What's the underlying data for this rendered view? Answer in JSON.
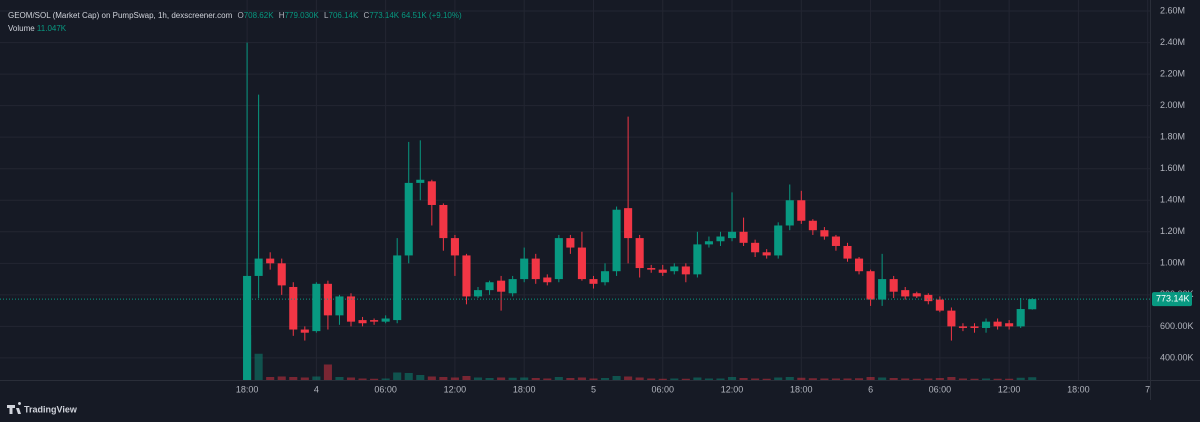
{
  "legend": {
    "symbol": "GEOM/SOL (Market Cap) on PumpSwap, 1h, dexscreener.com",
    "open_label": "O",
    "open": "708.62K",
    "high_label": "H",
    "high": "779.030K",
    "low_label": "L",
    "low": "706.14K",
    "close_label": "C",
    "close": "773.14K",
    "change": "64.51K (+9.10%)",
    "volume_label": "Volume",
    "volume": "11.047K"
  },
  "chart_data": {
    "type": "candlestick",
    "x": [
      18,
      19,
      20,
      21,
      22,
      23,
      24,
      25,
      26,
      27,
      28,
      29,
      30,
      31,
      32,
      33,
      34,
      35,
      36,
      37,
      38,
      39,
      40,
      41,
      42,
      43,
      44,
      45,
      46,
      47,
      48,
      49,
      50,
      51,
      52,
      53,
      54,
      55,
      56,
      57,
      58,
      59,
      60,
      61,
      62,
      63,
      64,
      65,
      66,
      67,
      68,
      69,
      70,
      71,
      72,
      73,
      74,
      75,
      76,
      77,
      78,
      79,
      80,
      81,
      82,
      83,
      84,
      85,
      86
    ],
    "open": [
      260000,
      920000,
      1030000,
      1000000,
      850000,
      580000,
      570000,
      870000,
      670000,
      790000,
      640000,
      640000,
      630000,
      640000,
      1050000,
      1510000,
      1520000,
      1370000,
      1160000,
      1050000,
      790000,
      830000,
      890000,
      810000,
      900000,
      1030000,
      910000,
      900000,
      1160000,
      1100000,
      900000,
      880000,
      950000,
      1350000,
      1160000,
      970000,
      960000,
      950000,
      980000,
      930000,
      1120000,
      1140000,
      1160000,
      1200000,
      1130000,
      1070000,
      1050000,
      1240000,
      1400000,
      1270000,
      1210000,
      1170000,
      1110000,
      1030000,
      950000,
      770000,
      900000,
      830000,
      810000,
      800000,
      770000,
      700000,
      600000,
      600000,
      590000,
      630000,
      620000,
      600000,
      708620
    ],
    "high": [
      2400000,
      2070000,
      1070000,
      1030000,
      880000,
      600000,
      880000,
      890000,
      800000,
      810000,
      660000,
      650000,
      670000,
      1160000,
      1770000,
      1780000,
      1530000,
      1380000,
      1180000,
      1060000,
      850000,
      890000,
      920000,
      920000,
      1100000,
      1060000,
      930000,
      1180000,
      1180000,
      1200000,
      920000,
      1000000,
      1360000,
      1930000,
      1180000,
      990000,
      990000,
      1000000,
      1000000,
      1200000,
      1170000,
      1200000,
      1450000,
      1290000,
      1150000,
      1090000,
      1260000,
      1500000,
      1460000,
      1280000,
      1230000,
      1180000,
      1130000,
      1040000,
      960000,
      1060000,
      920000,
      850000,
      820000,
      810000,
      790000,
      720000,
      620000,
      620000,
      650000,
      650000,
      640000,
      780000,
      779030
    ],
    "low": [
      260000,
      780000,
      960000,
      800000,
      540000,
      510000,
      560000,
      580000,
      610000,
      600000,
      600000,
      610000,
      620000,
      620000,
      1000000,
      1400000,
      1240000,
      1080000,
      920000,
      740000,
      780000,
      800000,
      700000,
      790000,
      880000,
      870000,
      860000,
      880000,
      1060000,
      890000,
      840000,
      860000,
      920000,
      1000000,
      910000,
      940000,
      920000,
      930000,
      880000,
      910000,
      1100000,
      1110000,
      1140000,
      1110000,
      1040000,
      1030000,
      1030000,
      1210000,
      1250000,
      1180000,
      1150000,
      1080000,
      1010000,
      930000,
      730000,
      730000,
      780000,
      770000,
      780000,
      740000,
      690000,
      510000,
      570000,
      560000,
      560000,
      580000,
      580000,
      590000,
      706140
    ],
    "close": [
      920000,
      1030000,
      1000000,
      860000,
      580000,
      560000,
      870000,
      670000,
      790000,
      630000,
      620000,
      630000,
      650000,
      1050000,
      1510000,
      1530000,
      1370000,
      1160000,
      1050000,
      790000,
      830000,
      880000,
      820000,
      900000,
      1030000,
      900000,
      880000,
      1160000,
      1100000,
      900000,
      870000,
      950000,
      1340000,
      1160000,
      970000,
      960000,
      940000,
      980000,
      930000,
      1120000,
      1140000,
      1170000,
      1200000,
      1130000,
      1070000,
      1050000,
      1240000,
      1400000,
      1270000,
      1210000,
      1170000,
      1110000,
      1030000,
      950000,
      770000,
      900000,
      820000,
      790000,
      790000,
      760000,
      700000,
      600000,
      590000,
      590000,
      630000,
      600000,
      600000,
      710000,
      773140
    ],
    "volume": [
      180000,
      105000,
      12000,
      14000,
      12000,
      10000,
      14000,
      62000,
      12000,
      10000,
      6000,
      5000,
      6000,
      30000,
      28000,
      20000,
      14000,
      12000,
      10000,
      16000,
      10000,
      8000,
      10000,
      9000,
      10000,
      8000,
      6000,
      12000,
      8000,
      10000,
      6000,
      8000,
      16000,
      14000,
      10000,
      6000,
      5000,
      6000,
      5000,
      10000,
      6000,
      6000,
      12000,
      8000,
      6000,
      5000,
      10000,
      12000,
      9000,
      7000,
      6000,
      6000,
      6000,
      7000,
      12000,
      10000,
      8000,
      6000,
      5000,
      6000,
      8000,
      12000,
      6000,
      5000,
      6000,
      5000,
      5000,
      9000,
      11047
    ],
    "xlim": [
      -3.4,
      96.2
    ],
    "xticks": [
      {
        "value": 18,
        "label": "18:00"
      },
      {
        "value": 24,
        "label": "4"
      },
      {
        "value": 30,
        "label": "06:00"
      },
      {
        "value": 36,
        "label": "12:00"
      },
      {
        "value": 42,
        "label": "18:00"
      },
      {
        "value": 48,
        "label": "5"
      },
      {
        "value": 54,
        "label": "06:00"
      },
      {
        "value": 60,
        "label": "12:00"
      },
      {
        "value": 66,
        "label": "18:00"
      },
      {
        "value": 72,
        "label": "6"
      },
      {
        "value": 78,
        "label": "06:00"
      },
      {
        "value": 84,
        "label": "12:00"
      },
      {
        "value": 90,
        "label": "18:00"
      },
      {
        "value": 96,
        "label": "7"
      }
    ],
    "ylim": [
      260000,
      2670000
    ],
    "yticks": [
      {
        "value": 400000,
        "label": "400.00K"
      },
      {
        "value": 600000,
        "label": "600.00K"
      },
      {
        "value": 800000,
        "label": "800.00K"
      },
      {
        "value": 1000000,
        "label": "1.00M"
      },
      {
        "value": 1200000,
        "label": "1.20M"
      },
      {
        "value": 1400000,
        "label": "1.40M"
      },
      {
        "value": 1600000,
        "label": "1.60M"
      },
      {
        "value": 1800000,
        "label": "1.80M"
      },
      {
        "value": 2000000,
        "label": "2.00M"
      },
      {
        "value": 2200000,
        "label": "2.20M"
      },
      {
        "value": 2400000,
        "label": "2.40M"
      },
      {
        "value": 2600000,
        "label": "2.60M"
      }
    ],
    "volume_ylim": [
      0,
      400000
    ],
    "up_color": "#089981",
    "down_color": "#f23645",
    "grid": true,
    "last_price": {
      "value": 773140,
      "label": "773.14K"
    }
  },
  "footer": {
    "brand": "TradingView"
  }
}
